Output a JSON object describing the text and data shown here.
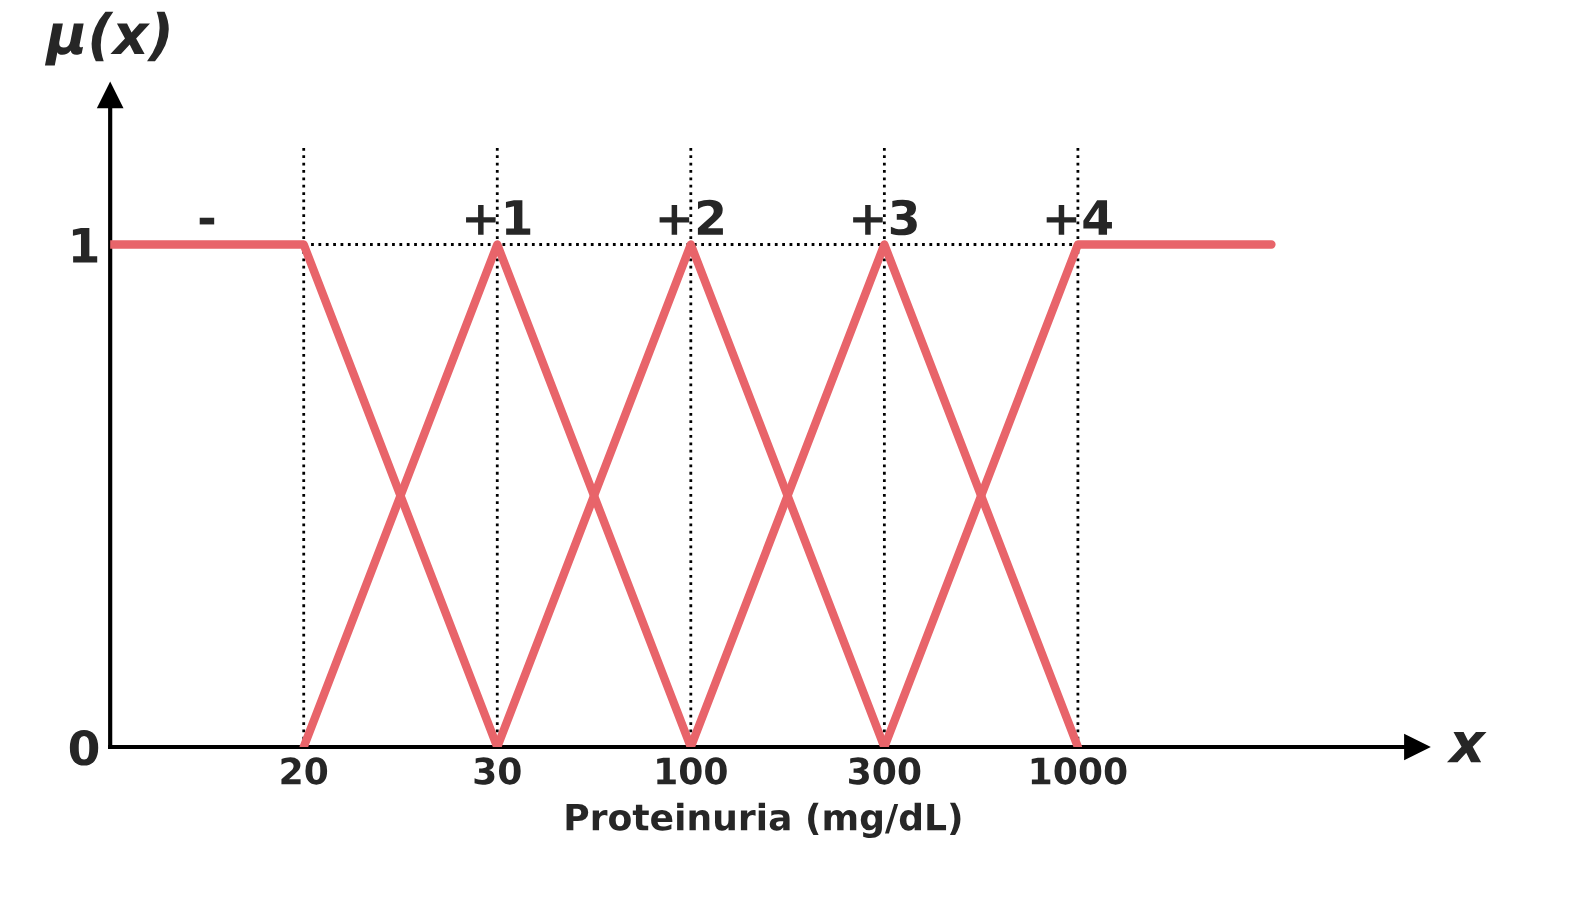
{
  "chart_data": {
    "type": "line",
    "xlabel": "Proteinuria (mg/dL)",
    "ylabel": "μ(x)",
    "categories": [
      null,
      "20",
      "30",
      "100",
      "300",
      "1000",
      null
    ],
    "ylim": [
      0,
      1.2
    ],
    "yticks": [
      0,
      1
    ],
    "grid": false,
    "legend": false,
    "marker": "none",
    "line_style": "solid",
    "series": [
      {
        "name": "-",
        "color": "#e8646a",
        "values": [
          1,
          1,
          0,
          null,
          null,
          null,
          null
        ]
      },
      {
        "name": "+1",
        "color": "#e8646a",
        "values": [
          null,
          0,
          1,
          0,
          null,
          null,
          null
        ]
      },
      {
        "name": "+2",
        "color": "#e8646a",
        "values": [
          null,
          null,
          0,
          1,
          0,
          null,
          null
        ]
      },
      {
        "name": "+3",
        "color": "#e8646a",
        "values": [
          null,
          null,
          null,
          0,
          1,
          0,
          null
        ]
      },
      {
        "name": "+4",
        "color": "#e8646a",
        "values": [
          null,
          null,
          null,
          null,
          0,
          1,
          1
        ]
      }
    ],
    "ref_lines": [
      {
        "axis": "x",
        "value": "20",
        "color": "#000000",
        "line_style": "dotted"
      },
      {
        "axis": "x",
        "value": "30",
        "color": "#000000",
        "line_style": "dotted"
      },
      {
        "axis": "x",
        "value": "100",
        "color": "#000000",
        "line_style": "dotted"
      },
      {
        "axis": "x",
        "value": "300",
        "color": "#000000",
        "line_style": "dotted"
      },
      {
        "axis": "x",
        "value": "1000",
        "color": "#000000",
        "line_style": "dotted"
      },
      {
        "axis": "y",
        "value": 1,
        "color": "#000000",
        "line_style": "dotted"
      }
    ],
    "annotations": [
      "x"
    ]
  }
}
